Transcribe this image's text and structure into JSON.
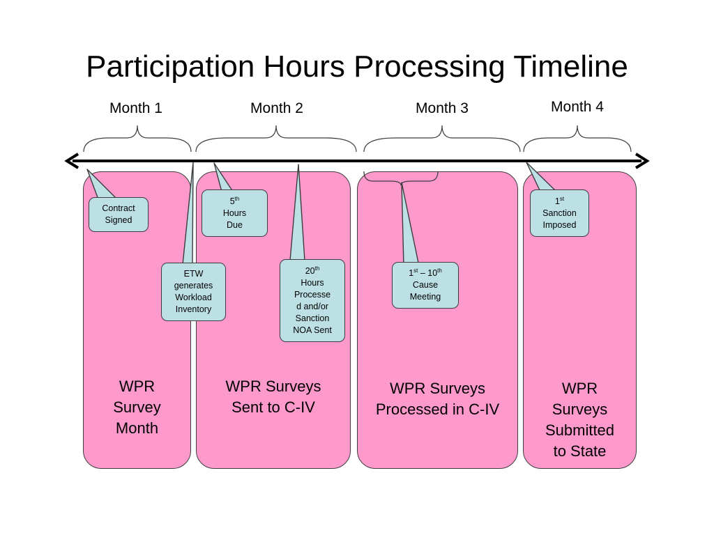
{
  "slide": {
    "title": "Participation Hours Processing Timeline"
  },
  "months": [
    {
      "label": "Month 1"
    },
    {
      "label": "Month 2"
    },
    {
      "label": "Month 3"
    },
    {
      "label": "Month 4"
    }
  ],
  "columns": [
    {
      "lines": [
        "WPR",
        "Survey",
        "Month"
      ]
    },
    {
      "lines": [
        "WPR Surveys",
        "Sent to C-IV"
      ]
    },
    {
      "lines": [
        "WPR Surveys",
        "Processed in C-IV"
      ]
    },
    {
      "lines": [
        "WPR",
        "Surveys",
        "Submitted",
        "to State"
      ]
    }
  ],
  "callouts": {
    "contract_signed": {
      "line1": "Contract",
      "line2": "Signed"
    },
    "etw_workload": {
      "line1": "ETW",
      "line2": "generates",
      "line3": "Workload",
      "line4": "Inventory"
    },
    "hours_due": {
      "num": "5",
      "sup": "th",
      "line2": "Hours",
      "line3": "Due"
    },
    "hours_processed": {
      "num": "20",
      "sup": "th",
      "line2": "Hours",
      "line3": "Processe",
      "line4": "d and/or",
      "line5": "Sanction",
      "line6": "NOA Sent"
    },
    "cause_meeting": {
      "num1": "1",
      "sup1": "st",
      "dash": " – 10",
      "sup2": "th",
      "line2": "Cause",
      "line3": "Meeting"
    },
    "sanction_imposed": {
      "num": "1",
      "sup": "st",
      "line2": "Sanction",
      "line3": "Imposed"
    }
  },
  "colors": {
    "column_fill": "#fe99cc",
    "callout_fill": "#bde0e4",
    "outline": "#3c3c3c",
    "timeline": "#000000"
  }
}
